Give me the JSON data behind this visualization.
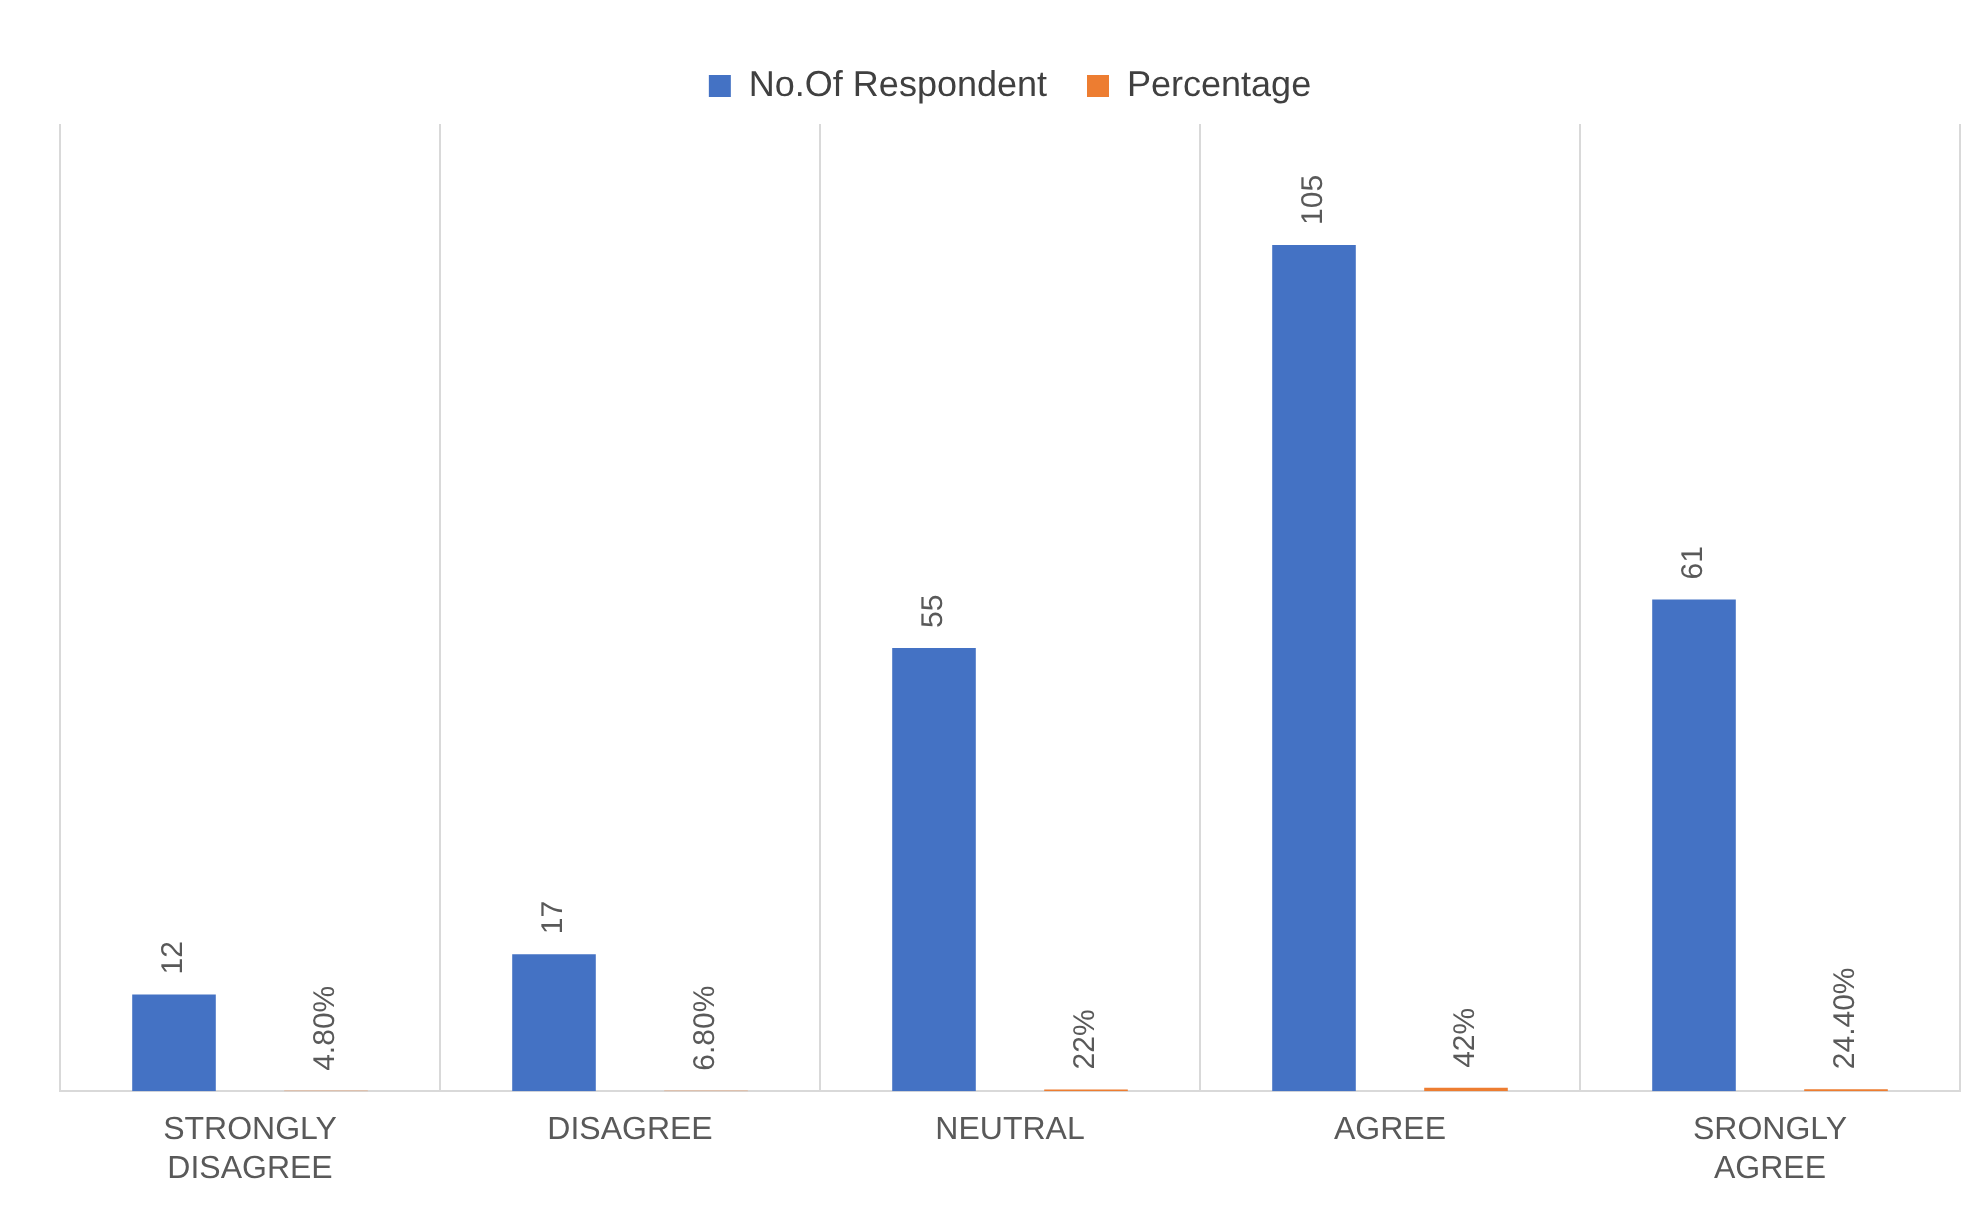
{
  "chart_data": {
    "type": "bar",
    "categories": [
      "STRONGLY DISAGREE",
      "DISAGREE",
      "NEUTRAL",
      "AGREE",
      "SRONGLY AGREE"
    ],
    "series": [
      {
        "name": "No.Of Respondent",
        "color": "#4472c4",
        "values": [
          12,
          17,
          55,
          105,
          61
        ],
        "value_labels": [
          "12",
          "17",
          "55",
          "105",
          "61"
        ]
      },
      {
        "name": "Percentage",
        "color": "#ed7d31",
        "values": [
          0.048,
          0.068,
          0.22,
          0.42,
          0.244
        ],
        "value_labels": [
          "4.80%",
          "6.80%",
          "22%",
          "42%",
          "24.40%"
        ]
      }
    ],
    "grid": "x",
    "legend": "top"
  }
}
